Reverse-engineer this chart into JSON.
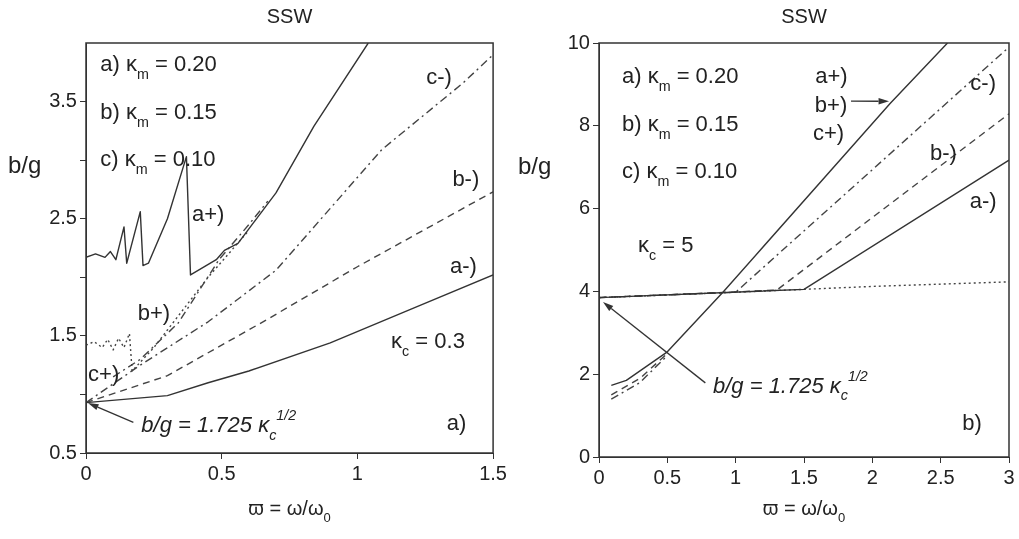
{
  "chart_data": [
    {
      "type": "line",
      "title": "SSW",
      "xlabel": "ϖ = ω/ω$_{0}$",
      "ylabel": "b/g",
      "xlim": [
        0,
        1.5
      ],
      "xticks": [
        0,
        0.5,
        1,
        1.5
      ],
      "ylim": [
        0.5,
        4.0
      ],
      "yticks": [
        0.5,
        {
          "value": 1,
          "label": null
        },
        1.5,
        {
          "value": 2,
          "label": null
        },
        2.5,
        {
          "value": 3,
          "label": null
        },
        3.5
      ],
      "grid": false,
      "legend": false,
      "marker": "none",
      "series": [
        {
          "color": "#333333",
          "line_style": "solid",
          "x": [
            0,
            0.3,
            0.45,
            0.6,
            0.9,
            1.2,
            1.5
          ],
          "values": [
            0.93,
            0.99,
            1.1,
            1.2,
            1.44,
            1.73,
            2.02
          ]
        },
        {
          "color": "#444444",
          "line_style": "dashed",
          "x": [
            0,
            0.3,
            0.66,
            1.0,
            1.5
          ],
          "values": [
            0.93,
            1.16,
            1.63,
            2.09,
            2.73
          ]
        },
        {
          "color": "#444444",
          "line_style": "dashdot",
          "x": [
            0,
            0.2,
            0.45,
            0.7,
            1.09,
            1.39,
            1.5
          ],
          "values": [
            0.93,
            1.25,
            1.62,
            2.06,
            3.09,
            3.66,
            3.9
          ]
        },
        {
          "color": "#333333",
          "line_style": "solid",
          "x": [
            0,
            0.035,
            0.07,
            0.09,
            0.11,
            0.14,
            0.15,
            0.2,
            0.21,
            0.23,
            0.3,
            0.37,
            0.385,
            0.48,
            0.51,
            0.56,
            0.7,
            0.84,
            1.04
          ],
          "values": [
            2.17,
            2.2,
            2.17,
            2.22,
            2.15,
            2.43,
            2.12,
            2.56,
            2.1,
            2.12,
            2.5,
            3.03,
            2.02,
            2.15,
            2.23,
            2.29,
            2.72,
            3.29,
            4.0
          ]
        },
        {
          "color": "#444444",
          "line_style": "dashdot",
          "x": [
            0.1,
            0.2,
            0.34,
            0.49,
            0.6,
            0.67
          ],
          "values": [
            1.15,
            1.3,
            1.61,
            2.15,
            2.45,
            2.65
          ]
        },
        {
          "color": "#444444",
          "line_style": "dotted",
          "x": [
            0,
            0.03,
            0.06,
            0.08,
            0.1,
            0.12,
            0.14,
            0.16,
            0.17,
            0.25,
            0.3,
            0.45,
            0.6
          ],
          "values": [
            1.42,
            1.45,
            1.4,
            1.47,
            1.38,
            1.48,
            1.4,
            1.52,
            1.2,
            1.4,
            1.55,
            2.0,
            2.4
          ]
        }
      ],
      "annotations": [
        "a) κ$_{m}$ = 0.20",
        "b) κ$_{m}$ = 0.15",
        "c) κ$_{m}$ = 0.10",
        "κ$_{c}$ = 0.3",
        "a)",
        {
          "text": "b/g = 1.725 κ$_{c}$$^{1/2}$",
          "x": 0,
          "y": 0.93
        },
        "a+)",
        "b+)",
        "c+)",
        "a-)",
        "b-)",
        "c-)"
      ]
    },
    {
      "type": "line",
      "title": "SSW",
      "xlabel": "ϖ = ω/ω$_{0}$",
      "ylabel": "b/g",
      "xlim": [
        0,
        3
      ],
      "xticks": [
        0,
        0.5,
        1,
        1.5,
        2,
        2.5,
        3
      ],
      "ylim": [
        0,
        10
      ],
      "yticks": [
        0,
        2,
        4,
        6,
        8,
        10
      ],
      "grid": false,
      "legend": false,
      "marker": "none",
      "series": [
        {
          "color": "#333333",
          "line_style": "solid",
          "x": [
            0.09,
            0.2,
            0.5,
            0.91,
            2.13,
            2.55
          ],
          "values": [
            1.73,
            1.85,
            2.54,
            3.99,
            8.54,
            10
          ]
        },
        {
          "color": "#444444",
          "line_style": "dashed",
          "x": [
            0.09,
            0.3,
            0.5
          ],
          "values": [
            1.5,
            1.9,
            2.5
          ]
        },
        {
          "color": "#444444",
          "line_style": "dashdot",
          "x": [
            0.09,
            0.3,
            0.5
          ],
          "values": [
            1.4,
            1.8,
            2.45
          ]
        },
        {
          "color": "#333333",
          "line_style": "solid",
          "x": [
            0,
            1.5,
            3
          ],
          "values": [
            3.85,
            4.05,
            7.17
          ]
        },
        {
          "color": "#444444",
          "line_style": "dashed",
          "x": [
            0,
            1.3,
            3
          ],
          "values": [
            3.85,
            4.03,
            8.29
          ]
        },
        {
          "color": "#444444",
          "line_style": "dashdot",
          "x": [
            0,
            1.0,
            3
          ],
          "values": [
            3.85,
            3.98,
            9.9
          ]
        },
        {
          "color": "#444444",
          "line_style": "dotted",
          "x": [
            0,
            1,
            1.5,
            2,
            3
          ],
          "values": [
            3.85,
            3.98,
            4.05,
            4.12,
            4.23
          ]
        }
      ],
      "annotations": [
        "a) κ$_{m}$ = 0.20",
        "b) κ$_{m}$ = 0.15",
        "c) κ$_{m}$ = 0.10",
        "κ$_{c}$ = 5",
        "b)",
        "b/g = 1.725 κ$_{c}$$^{1/2}$",
        "a+)",
        "b+)",
        "c+)",
        "a-)",
        "b-)",
        "c-)"
      ]
    }
  ]
}
